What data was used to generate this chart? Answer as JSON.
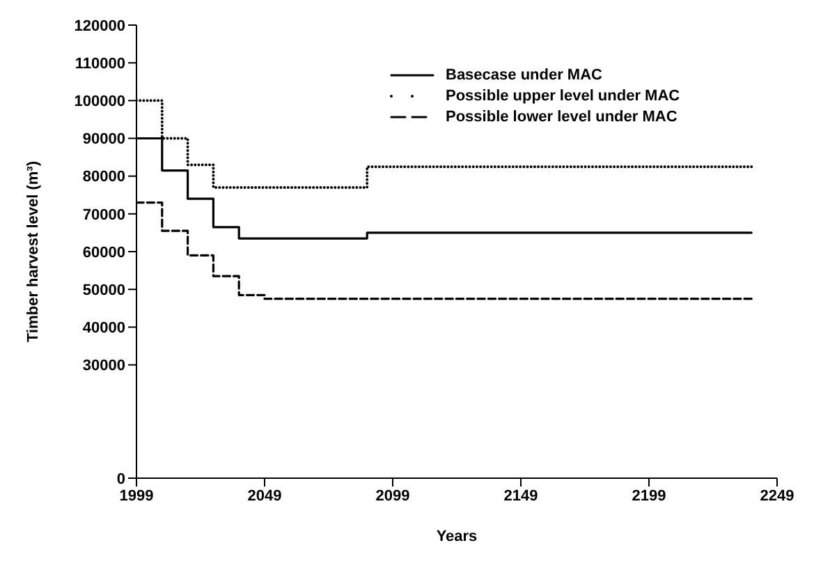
{
  "chart_data": {
    "type": "step",
    "xlabel": "Years",
    "ylabel": "Timber harvest level (m³)",
    "xlim": [
      1999,
      2249
    ],
    "xticks": [
      1999,
      2049,
      2099,
      2149,
      2199,
      2249
    ],
    "ylim": [
      0,
      120000
    ],
    "yticks": [
      0,
      30000,
      40000,
      50000,
      60000,
      70000,
      80000,
      90000,
      100000,
      110000,
      120000
    ],
    "grid": false,
    "legend": "top right",
    "marker": "none",
    "series": [
      {
        "name": "Basecase under MAC",
        "color": "#000000",
        "line_style": "solid",
        "x": [
          1999,
          2009,
          2019,
          2029,
          2039,
          2089,
          2239
        ],
        "values": [
          90000,
          81500,
          74000,
          66500,
          63500,
          65000,
          65000
        ]
      },
      {
        "name": "Possible upper level under MAC",
        "color": "#000000",
        "line_style": "dotted",
        "x": [
          1999,
          2009,
          2019,
          2029,
          2089,
          2239
        ],
        "values": [
          100000,
          90000,
          83000,
          77000,
          82500,
          82500
        ]
      },
      {
        "name": "Possible lower level under MAC",
        "color": "#000000",
        "line_style": "dashed",
        "x": [
          1999,
          2009,
          2019,
          2029,
          2039,
          2049,
          2239
        ],
        "values": [
          73000,
          65500,
          59000,
          53500,
          48500,
          47500,
          47500
        ]
      }
    ]
  }
}
